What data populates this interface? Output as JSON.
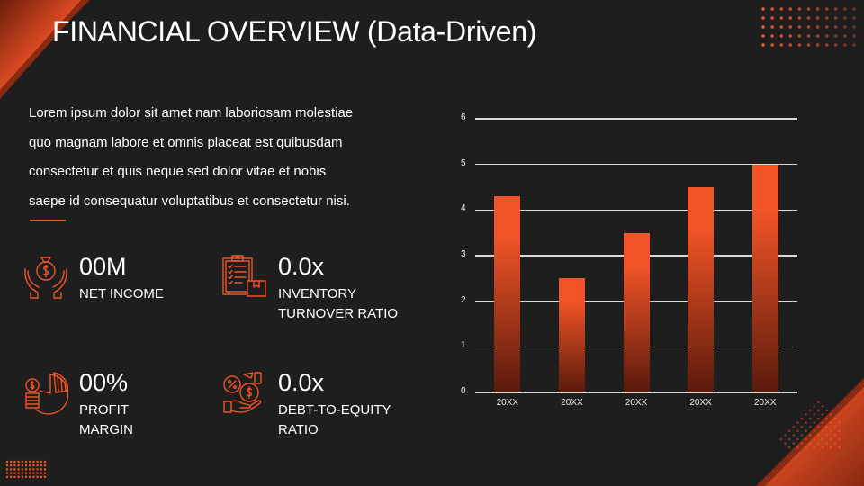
{
  "slide": {
    "title": "FINANCIAL OVERVIEW (Data-Driven)",
    "description": "Lorem ipsum dolor sit amet nam laboriosam molestiae quo magnam labore et omnis placeat est quibusdam consectetur et quis neque sed dolor vitae et nobis saepe id consequatur voluptatibus et consectetur nisi.",
    "description_lines": [
      "Lorem ipsum dolor sit amet nam laboriosam molestiae",
      "quo magnam labore et omnis placeat est quibusdam",
      "consectetur et quis neque sed dolor vitae et nobis",
      "saepe id consequatur voluptatibus et consectetur nisi."
    ]
  },
  "colors": {
    "background": "#1e1e1e",
    "accent": "#f15427",
    "accent_dark": "#5a1a0c",
    "text": "#ffffff",
    "grid": "#d8d8d8"
  },
  "kpis": [
    {
      "icon": "money-bag-hands-icon",
      "value": "00M",
      "label_lines": [
        "NET INCOME"
      ]
    },
    {
      "icon": "clipboard-box-icon",
      "value": "0.0x",
      "label_lines": [
        "INVENTORY",
        "TURNOVER RATIO"
      ]
    },
    {
      "icon": "pie-chart-coins-icon",
      "value": "00%",
      "label_lines": [
        "PROFIT",
        "MARGIN"
      ]
    },
    {
      "icon": "percent-money-hand-icon",
      "value": "0.0x",
      "label_lines": [
        "DEBT-TO-EQUITY",
        "RATIO"
      ]
    }
  ],
  "chart_data": {
    "type": "bar",
    "title": "",
    "xlabel": "",
    "ylabel": "",
    "categories": [
      "20XX",
      "20XX",
      "20XX",
      "20XX",
      "20XX"
    ],
    "values": [
      4.3,
      2.5,
      3.5,
      4.5,
      5.0
    ],
    "ylim": [
      0,
      6
    ],
    "yticks": [
      0,
      1,
      2,
      3,
      4,
      5,
      6
    ],
    "ytick_labels": [
      "0",
      "1",
      "2",
      "3",
      "4",
      "5",
      "6"
    ],
    "grid": true,
    "legend": null,
    "bar_style": "vertical gradient orange (#f15427) to dark red-brown (#5a1a0c)"
  }
}
